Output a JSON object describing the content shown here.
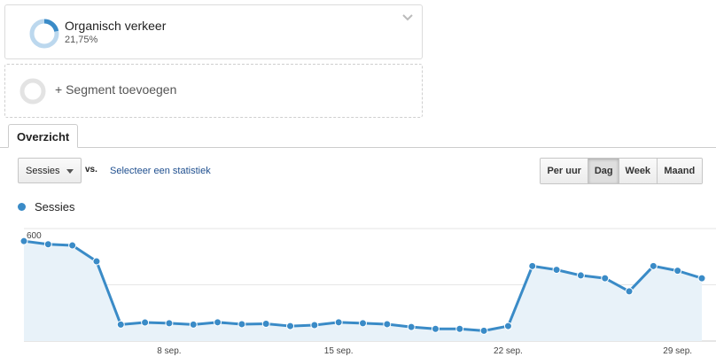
{
  "segment": {
    "title": "Organisch verkeer",
    "value": "21,75%",
    "fraction": 0.2175,
    "icon": "donut-chart-icon"
  },
  "add_segment": {
    "label": "+ Segment toevoegen",
    "icon": "empty-ring-icon"
  },
  "tabs": [
    {
      "label": "Overzicht",
      "active": true
    }
  ],
  "controls": {
    "metric_select": "Sessies",
    "vs_label": "vs.",
    "select_stat_link": "Selecteer een statistiek",
    "granularity": [
      {
        "label": "Per uur",
        "active": false
      },
      {
        "label": "Dag",
        "active": true
      },
      {
        "label": "Week",
        "active": false
      },
      {
        "label": "Maand",
        "active": false
      }
    ]
  },
  "colors": {
    "series": "#3a8bc7",
    "fill": "#e8f2f9",
    "grid": "#e6e6e6",
    "link": "#1f4f8f"
  },
  "chart_data": {
    "type": "area",
    "series": [
      {
        "name": "Sessies",
        "values": [
          533,
          516,
          510,
          425,
          88,
          99,
          95,
          88,
          100,
          90,
          92,
          80,
          85,
          100,
          95,
          90,
          75,
          65,
          65,
          55,
          80,
          400,
          380,
          350,
          335,
          265,
          400,
          375,
          335
        ]
      }
    ],
    "x_tick_labels": [
      {
        "index": 6,
        "label": "8 sep."
      },
      {
        "index": 13,
        "label": "15 sep."
      },
      {
        "index": 20,
        "label": "22 sep."
      },
      {
        "index": 27,
        "label": "29 sep."
      }
    ],
    "y_ticks": [
      300,
      600
    ],
    "ylim": [
      0,
      600
    ],
    "grid": true,
    "legend": "top-left"
  }
}
